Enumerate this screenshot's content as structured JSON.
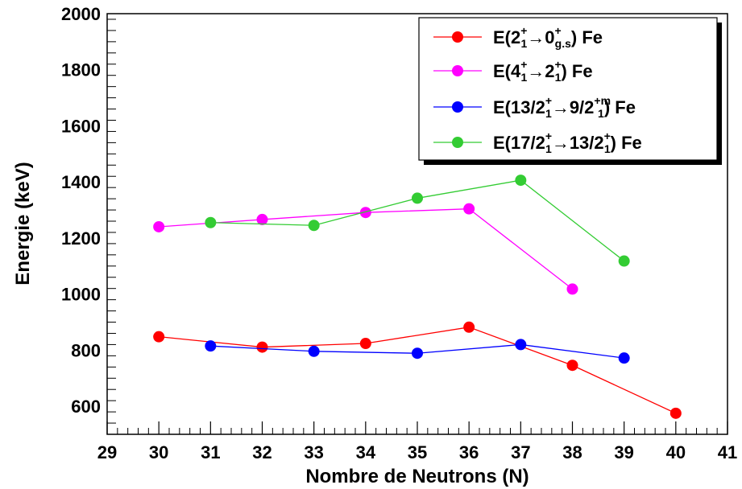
{
  "chart_data": {
    "type": "line",
    "title": "",
    "xlabel": "Nombre de Neutrons (N)",
    "ylabel": "Energie (keV)",
    "xlim": [
      29,
      41
    ],
    "ylim": [
      500,
      2000
    ],
    "x_ticks": [
      "29",
      "30",
      "31",
      "32",
      "33",
      "34",
      "35",
      "36",
      "37",
      "38",
      "39",
      "40",
      "41"
    ],
    "y_ticks": [
      "600",
      "800",
      "1000",
      "1200",
      "1400",
      "1600",
      "1800",
      "2000"
    ],
    "grid": false,
    "legend_position": "top-right",
    "series": [
      {
        "name": "E(2₁⁺→0⁺ g.s) Fe",
        "legend": {
          "prefix": "E(2",
          "sup1": "+",
          "sub1": "1",
          "mid": "→0",
          "sup2": "+",
          "sub2": "g.s",
          "suffix": ") Fe"
        },
        "color": "#ff0000",
        "x": [
          30,
          32,
          34,
          36,
          38,
          40
        ],
        "y": [
          848,
          811,
          824,
          882,
          746,
          575
        ]
      },
      {
        "name": "E(4₁⁺→2₁⁺) Fe",
        "legend": {
          "prefix": "E(4",
          "sup1": "+",
          "sub1": "1",
          "mid": "→2",
          "sup2": "+",
          "sub2": "1",
          "suffix": ") Fe"
        },
        "color": "#ff00ff",
        "x": [
          30,
          32,
          34,
          36,
          38
        ],
        "y": [
          1240,
          1266,
          1291,
          1304,
          1018
        ]
      },
      {
        "name": "E(13/2₁⁺→9/2₁⁺ᵐ) Fe",
        "legend": {
          "prefix": "E(13/2",
          "sup1": "+",
          "sub1": "1",
          "mid": "→9/2",
          "sup2": "+m",
          "sub2": "1",
          "suffix": ") Fe"
        },
        "color": "#0000ff",
        "x": [
          31,
          33,
          35,
          37,
          39
        ],
        "y": [
          815,
          796,
          789,
          820,
          772
        ]
      },
      {
        "name": "E(17/2₁⁺→13/2₁⁺) Fe",
        "legend": {
          "prefix": "E(17/2",
          "sup1": "+",
          "sub1": "1",
          "mid": "→13/2",
          "sup2": "+",
          "sub2": "1",
          "suffix": ") Fe"
        },
        "color": "#33cc33",
        "x": [
          31,
          33,
          35,
          37,
          39
        ],
        "y": [
          1255,
          1245,
          1342,
          1406,
          1118
        ]
      }
    ]
  }
}
